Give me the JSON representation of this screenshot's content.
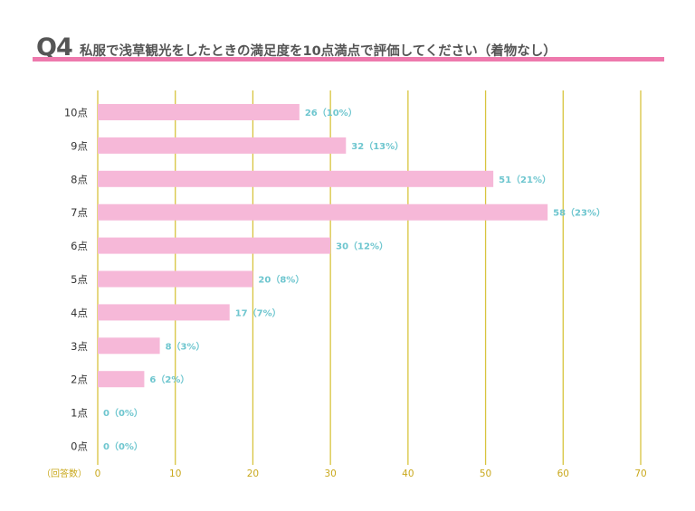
{
  "header": {
    "q_number": "Q4",
    "question": "私服で浅草観光をしたときの満足度を10点満点で評価してください（着物なし）"
  },
  "colors": {
    "bar": "#f6b8d8",
    "label": "#6ec6cf",
    "grid": "#d8c43e",
    "tick": "#c9a81c",
    "category": "#333333",
    "accent": "#ee79ad"
  },
  "chart_data": {
    "type": "bar",
    "orientation": "horizontal",
    "categories": [
      "10点",
      "9点",
      "8点",
      "7点",
      "6点",
      "5点",
      "4点",
      "3点",
      "2点",
      "1点",
      "0点"
    ],
    "values": [
      26,
      32,
      51,
      58,
      30,
      20,
      17,
      8,
      6,
      0,
      0
    ],
    "percents": [
      10,
      13,
      21,
      23,
      12,
      8,
      7,
      3,
      2,
      0,
      0
    ],
    "bar_labels": [
      "26（10%）",
      "32（13%）",
      "51（21%）",
      "58（23%）",
      "30（12%）",
      "20（8%）",
      "17（7%）",
      "8（3%）",
      "6（2%）",
      "0（0%）",
      "0（0%）"
    ],
    "xlabel": "（回答数）",
    "ylabel": "",
    "xlim": [
      0,
      70
    ],
    "xticks": [
      0,
      10,
      20,
      30,
      40,
      50,
      60,
      70
    ],
    "grid": true,
    "legend": "none"
  }
}
